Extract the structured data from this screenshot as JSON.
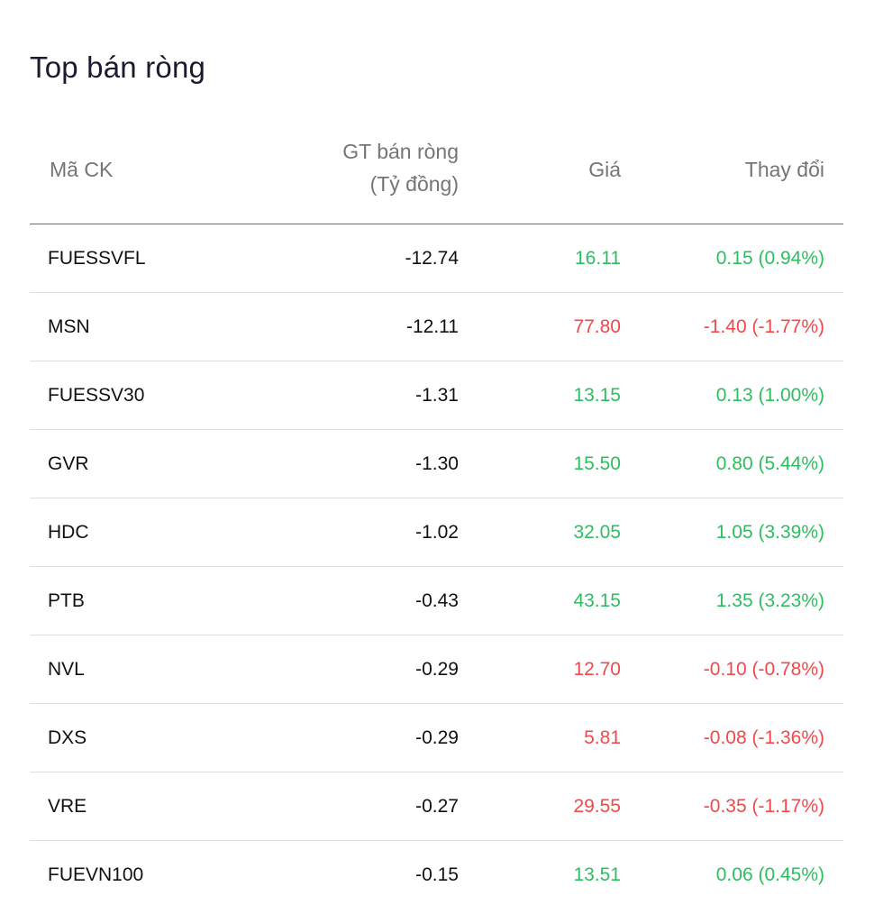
{
  "title": "Top bán ròng",
  "columns": {
    "code": "Mã CK",
    "net_value_line1": "GT bán ròng",
    "net_value_line2": "(Tỷ đồng)",
    "price": "Giá",
    "change": "Thay đổi"
  },
  "colors": {
    "up": "#2dbe60",
    "down": "#f2484b"
  },
  "rows": [
    {
      "code": "FUESSVFL",
      "net": "-12.74",
      "price": "16.11",
      "change": "0.15 (0.94%)",
      "dir": "up"
    },
    {
      "code": "MSN",
      "net": "-12.11",
      "price": "77.80",
      "change": "-1.40 (-1.77%)",
      "dir": "down"
    },
    {
      "code": "FUESSV30",
      "net": "-1.31",
      "price": "13.15",
      "change": "0.13 (1.00%)",
      "dir": "up"
    },
    {
      "code": "GVR",
      "net": "-1.30",
      "price": "15.50",
      "change": "0.80 (5.44%)",
      "dir": "up"
    },
    {
      "code": "HDC",
      "net": "-1.02",
      "price": "32.05",
      "change": "1.05 (3.39%)",
      "dir": "up"
    },
    {
      "code": "PTB",
      "net": "-0.43",
      "price": "43.15",
      "change": "1.35 (3.23%)",
      "dir": "up"
    },
    {
      "code": "NVL",
      "net": "-0.29",
      "price": "12.70",
      "change": "-0.10 (-0.78%)",
      "dir": "down"
    },
    {
      "code": "DXS",
      "net": "-0.29",
      "price": "5.81",
      "change": "-0.08 (-1.36%)",
      "dir": "down"
    },
    {
      "code": "VRE",
      "net": "-0.27",
      "price": "29.55",
      "change": "-0.35 (-1.17%)",
      "dir": "down"
    },
    {
      "code": "FUEVN100",
      "net": "-0.15",
      "price": "13.51",
      "change": "0.06 (0.45%)",
      "dir": "up"
    }
  ]
}
